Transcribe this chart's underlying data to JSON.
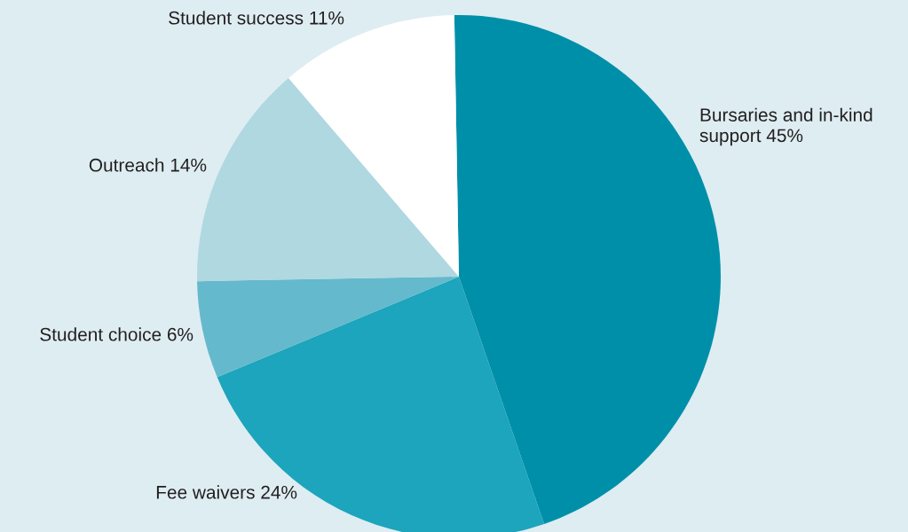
{
  "chart_data": {
    "type": "pie",
    "categories": [
      "Bursaries and in-kind\nsupport",
      "Fee waivers",
      "Student choice",
      "Outreach",
      "Student success"
    ],
    "values": [
      45,
      24,
      6,
      14,
      11
    ],
    "value_labels": [
      "45%",
      "24%",
      "6%",
      "14%",
      "11%"
    ],
    "colors": [
      "#008fa9",
      "#1ca5bc",
      "#65b9cc",
      "#afd8e1",
      "#ffffff"
    ]
  }
}
